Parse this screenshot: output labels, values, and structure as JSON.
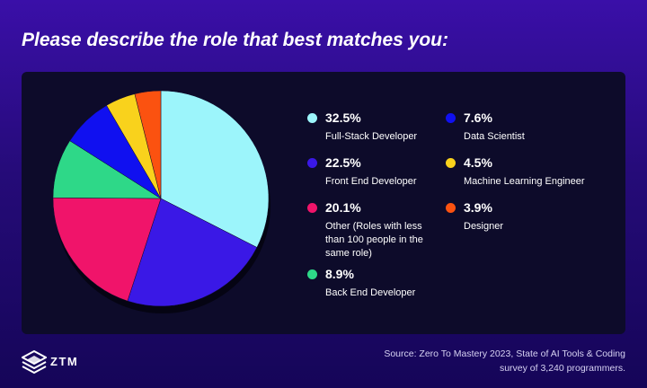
{
  "title": "Please describe the role that best matches you:",
  "chart_data": {
    "type": "pie",
    "slices": [
      {
        "value": 32.5,
        "value_label": "32.5%",
        "label": "Full-Stack Developer",
        "color": "#9cf5fb"
      },
      {
        "value": 22.5,
        "value_label": "22.5%",
        "label": "Front End Developer",
        "color": "#3a18e6"
      },
      {
        "value": 20.1,
        "value_label": "20.1%",
        "label": "Other (Roles with less than 100 people in the same role)",
        "color": "#f0146a"
      },
      {
        "value": 8.9,
        "value_label": "8.9%",
        "label": "Back End Developer",
        "color": "#2ed888"
      },
      {
        "value": 7.6,
        "value_label": "7.6%",
        "label": "Data Scientist",
        "color": "#1010f0"
      },
      {
        "value": 4.5,
        "value_label": "4.5%",
        "label": "Machine Learning Engineer",
        "color": "#f9d21c"
      },
      {
        "value": 3.9,
        "value_label": "3.9%",
        "label": "Designer",
        "color": "#fb5210"
      }
    ]
  },
  "footer": {
    "logo_text": "ZTM",
    "source_line1": "Source: Zero To Mastery 2023, State of AI Tools & Coding",
    "source_line2": "survey of 3,240 programmers."
  }
}
